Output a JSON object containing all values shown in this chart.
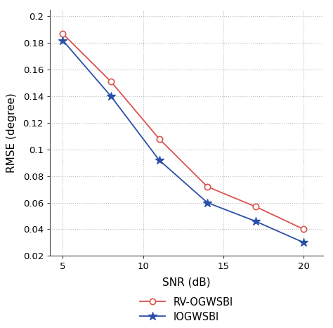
{
  "snr": [
    5,
    8,
    11,
    14,
    17,
    20
  ],
  "rv_ogwsbi": [
    0.187,
    0.151,
    0.108,
    0.072,
    0.057,
    0.04
  ],
  "iogwsbi": [
    0.182,
    0.14,
    0.092,
    0.06,
    0.046,
    0.03
  ],
  "rv_color": "#d9534f",
  "iog_color": "#2b4fa8",
  "rv_label": "RV-OGWSBI",
  "iog_label": "IOGWSBI",
  "xlabel": "SNR (dB)",
  "ylabel": "RMSE (degree)",
  "xlim": [
    4.2,
    21.2
  ],
  "ylim": [
    0.02,
    0.205
  ],
  "xticks": [
    5,
    10,
    15,
    20
  ],
  "yticks": [
    0.02,
    0.04,
    0.06,
    0.08,
    0.1,
    0.12,
    0.14,
    0.16,
    0.18,
    0.2
  ],
  "ytick_labels": [
    "0.02",
    "0.04",
    "0.06",
    "0.08",
    "0.1",
    "0.12",
    "0.14",
    "0.16",
    "0.18",
    "0.2"
  ],
  "grid_color": "#bbbbbb",
  "background_color": "#ffffff",
  "marker_rv": "o",
  "marker_iog": "*",
  "marker_size_rv": 6,
  "marker_size_iog": 9,
  "linewidth": 1.3
}
